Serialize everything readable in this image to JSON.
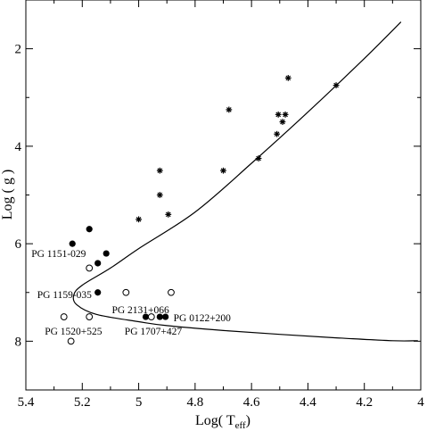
{
  "chart_data": {
    "type": "scatter",
    "title": "",
    "xlabel": "Log( T",
    "xlabel_sub": "eff",
    "xlabel_close": ")",
    "ylabel": "Log ( g )",
    "xlim": [
      5.4,
      4.0
    ],
    "ylim": [
      9.0,
      1.0
    ],
    "x_inverted": true,
    "y_inverted": true,
    "grid": false,
    "x_ticks": [
      {
        "value": 5.4,
        "label": "5.4"
      },
      {
        "value": 5.2,
        "label": "5.2"
      },
      {
        "value": 5.0,
        "label": "5"
      },
      {
        "value": 4.8,
        "label": "4.8"
      },
      {
        "value": 4.6,
        "label": "4.6"
      },
      {
        "value": 4.4,
        "label": "4.4"
      },
      {
        "value": 4.2,
        "label": "4.2"
      },
      {
        "value": 4.0,
        "label": "4"
      }
    ],
    "x_minor_ticks": [
      5.3,
      5.1,
      4.9,
      4.7,
      4.5,
      4.3,
      4.1
    ],
    "y_ticks": [
      {
        "value": 2,
        "label": "2"
      },
      {
        "value": 4,
        "label": "4"
      },
      {
        "value": 6,
        "label": "6"
      },
      {
        "value": 8,
        "label": "8"
      }
    ],
    "y_minor_ticks": [
      1,
      3,
      5,
      7,
      9
    ],
    "curve": [
      [
        4.07,
        1.45
      ],
      [
        4.2,
        2.2
      ],
      [
        4.4,
        3.3
      ],
      [
        4.6,
        4.35
      ],
      [
        4.8,
        5.35
      ],
      [
        5.0,
        6.1
      ],
      [
        5.1,
        6.5
      ],
      [
        5.2,
        6.85
      ],
      [
        5.23,
        7.05
      ],
      [
        5.22,
        7.25
      ],
      [
        5.15,
        7.45
      ],
      [
        5.0,
        7.6
      ],
      [
        4.9,
        7.68
      ],
      [
        4.7,
        7.78
      ],
      [
        4.5,
        7.86
      ],
      [
        4.3,
        7.93
      ],
      [
        4.1,
        7.99
      ],
      [
        4.01,
        7.99
      ]
    ],
    "series": [
      {
        "marker": "filled-circle",
        "points": [
          [
            5.235,
            6.0
          ],
          [
            5.175,
            5.7
          ],
          [
            5.145,
            6.4
          ],
          [
            5.115,
            6.2
          ],
          [
            5.145,
            7.0
          ],
          [
            4.975,
            7.5
          ],
          [
            4.925,
            7.5
          ],
          [
            4.905,
            7.5
          ]
        ]
      },
      {
        "marker": "open-circle",
        "points": [
          [
            5.175,
            6.5
          ],
          [
            5.265,
            7.5
          ],
          [
            5.175,
            7.5
          ],
          [
            5.045,
            7.0
          ],
          [
            4.955,
            7.5
          ],
          [
            4.885,
            7.0
          ],
          [
            5.24,
            8.0
          ]
        ]
      },
      {
        "marker": "asterisk",
        "points": [
          [
            4.47,
            2.6
          ],
          [
            4.68,
            3.25
          ],
          [
            4.3,
            2.75
          ],
          [
            4.505,
            3.35
          ],
          [
            4.48,
            3.35
          ],
          [
            4.49,
            3.5
          ],
          [
            4.51,
            3.75
          ],
          [
            4.575,
            4.25
          ],
          [
            4.7,
            4.5
          ],
          [
            4.925,
            4.5
          ],
          [
            4.925,
            5.0
          ],
          [
            4.895,
            5.4
          ],
          [
            5.0,
            5.5
          ]
        ]
      }
    ],
    "annotations": [
      {
        "text": "PG 1151-029",
        "x": 5.235,
        "y": 6.0
      },
      {
        "text": "PG 1159-035",
        "x": 5.145,
        "y": 7.0
      },
      {
        "text": "PG 2131+066",
        "x": 4.975,
        "y": 7.5
      },
      {
        "text": "PG 0122+200",
        "x": 4.905,
        "y": 7.5
      },
      {
        "text": "PG 1520+525",
        "x": 5.175,
        "y": 7.5
      },
      {
        "text": "PG 1707+427",
        "x": 4.955,
        "y": 7.5
      }
    ]
  }
}
